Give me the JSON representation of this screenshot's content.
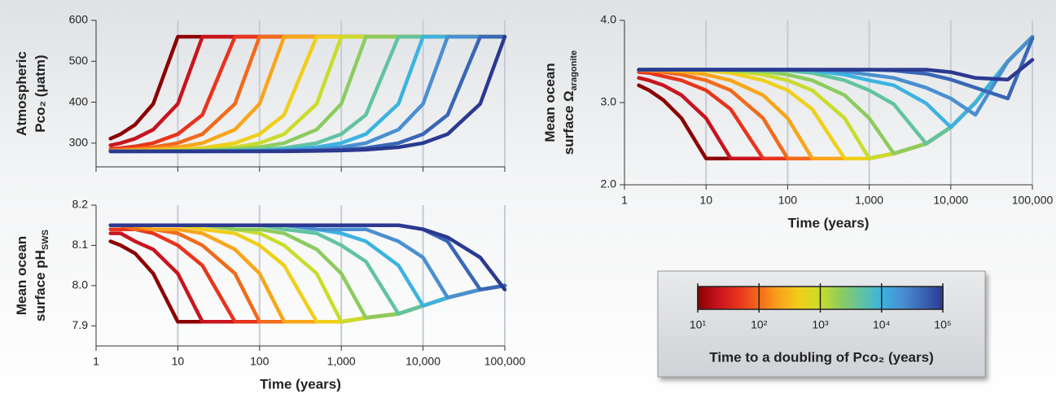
{
  "chart_data": [
    {
      "type": "line",
      "xscale": "log",
      "grid": "x",
      "xtick_labels": false,
      "ylabel": [
        "Atmospheric",
        "Pco₂ (μatm)"
      ],
      "xlim": [
        1,
        100000
      ],
      "xticks": [
        1,
        10,
        100,
        1000,
        10000,
        100000
      ],
      "ylim": [
        242,
        600
      ],
      "yticks": [
        300,
        400,
        500,
        600
      ],
      "x": [
        1.5,
        2,
        3,
        5,
        10,
        20,
        50,
        100,
        200,
        500,
        1000,
        2000,
        5000,
        10000,
        20000,
        50000,
        100000
      ],
      "series": [
        {
          "color": "#8b0000",
          "values": [
            311,
            322,
            345,
            396,
            560,
            560,
            560,
            560,
            560,
            560,
            560,
            560,
            560,
            560,
            560,
            560,
            560
          ]
        },
        {
          "color": "#c8141e",
          "values": [
            295,
            300,
            311,
            333,
            396,
            560,
            560,
            560,
            560,
            560,
            560,
            560,
            560,
            560,
            560,
            560,
            560
          ]
        },
        {
          "color": "#e8341c",
          "values": [
            286,
            288,
            292,
            300,
            322,
            369,
            560,
            560,
            560,
            560,
            560,
            560,
            560,
            560,
            560,
            560,
            560
          ]
        },
        {
          "color": "#f26a1b",
          "values": [
            283,
            284,
            286,
            290,
            300,
            322,
            396,
            560,
            560,
            560,
            560,
            560,
            560,
            560,
            560,
            560,
            560
          ]
        },
        {
          "color": "#f9a51a",
          "values": [
            281,
            282,
            283,
            285,
            290,
            300,
            333,
            396,
            560,
            560,
            560,
            560,
            560,
            560,
            560,
            560,
            560
          ]
        },
        {
          "color": "#f0cf1a",
          "values": [
            280,
            281,
            281,
            282,
            284,
            288,
            300,
            322,
            369,
            560,
            560,
            560,
            560,
            560,
            560,
            560,
            560
          ]
        },
        {
          "color": "#c9dc2b",
          "values": [
            280,
            280,
            281,
            281,
            282,
            284,
            290,
            300,
            322,
            396,
            560,
            560,
            560,
            560,
            560,
            560,
            560
          ]
        },
        {
          "color": "#8ccc5e",
          "values": [
            280,
            280,
            280,
            280,
            281,
            282,
            285,
            290,
            300,
            333,
            396,
            560,
            560,
            560,
            560,
            560,
            560
          ]
        },
        {
          "color": "#62c3a0",
          "values": [
            280,
            280,
            280,
            280,
            280,
            281,
            282,
            284,
            288,
            300,
            322,
            369,
            560,
            560,
            560,
            560,
            560
          ]
        },
        {
          "color": "#3bb3e0",
          "values": [
            280,
            280,
            280,
            280,
            280,
            280,
            281,
            282,
            284,
            290,
            300,
            322,
            396,
            560,
            560,
            560,
            560
          ]
        },
        {
          "color": "#4a8fd0",
          "values": [
            280,
            280,
            280,
            280,
            280,
            280,
            280,
            281,
            282,
            285,
            290,
            300,
            333,
            396,
            560,
            560,
            560
          ]
        },
        {
          "color": "#3a66b5",
          "values": [
            280,
            280,
            280,
            280,
            280,
            280,
            280,
            280,
            281,
            282,
            284,
            288,
            300,
            322,
            369,
            560,
            560
          ]
        },
        {
          "color": "#2b3990",
          "values": [
            280,
            280,
            280,
            280,
            280,
            280,
            280,
            280,
            280,
            281,
            282,
            284,
            290,
            300,
            322,
            396,
            560
          ]
        }
      ]
    },
    {
      "type": "line",
      "xscale": "log",
      "grid": "x",
      "xtick_labels": true,
      "ylabel": [
        "Mean ocean",
        "surface pH"
      ],
      "ylabel_subscript": "SWS",
      "xlabel": "Time (years)",
      "xlim": [
        1,
        100000
      ],
      "xticks": [
        1,
        10,
        100,
        {
          "value": 1000,
          "label": "1,000"
        },
        {
          "value": 10000,
          "label": "10,000"
        },
        {
          "value": 100000,
          "label": "100,000"
        }
      ],
      "ylim": [
        7.85,
        8.2
      ],
      "yticks": [
        8.2,
        8.1,
        {
          "value": 8,
          "label": "8.0"
        },
        7.9
      ],
      "x": [
        1.5,
        2,
        3,
        5,
        10,
        20,
        50,
        100,
        200,
        500,
        1000,
        2000,
        5000,
        10000,
        20000,
        50000,
        100000
      ],
      "series": [
        {
          "color": "#8b0000",
          "values": [
            8.11,
            8.1,
            8.08,
            8.03,
            7.91,
            7.91,
            7.91,
            7.91,
            7.91,
            7.91,
            7.91,
            7.92,
            7.93,
            7.95,
            7.97,
            7.99,
            8.0
          ]
        },
        {
          "color": "#c8141e",
          "values": [
            8.13,
            8.13,
            8.11,
            8.09,
            8.03,
            7.91,
            7.91,
            7.91,
            7.91,
            7.91,
            7.91,
            7.92,
            7.93,
            7.95,
            7.97,
            7.99,
            8.0
          ]
        },
        {
          "color": "#e8341c",
          "values": [
            8.14,
            8.14,
            8.14,
            8.13,
            8.1,
            8.05,
            7.91,
            7.91,
            7.91,
            7.91,
            7.91,
            7.92,
            7.93,
            7.95,
            7.97,
            7.99,
            8.0
          ]
        },
        {
          "color": "#f26a1b",
          "values": [
            8.15,
            8.15,
            8.14,
            8.14,
            8.13,
            8.1,
            8.03,
            7.91,
            7.91,
            7.91,
            7.91,
            7.92,
            7.93,
            7.95,
            7.97,
            7.99,
            8.0
          ]
        },
        {
          "color": "#f9a51a",
          "values": [
            8.15,
            8.15,
            8.15,
            8.14,
            8.14,
            8.13,
            8.09,
            8.03,
            7.91,
            7.91,
            7.91,
            7.92,
            7.93,
            7.95,
            7.97,
            7.99,
            8.0
          ]
        },
        {
          "color": "#f0cf1a",
          "values": [
            8.15,
            8.15,
            8.15,
            8.15,
            8.15,
            8.14,
            8.13,
            8.1,
            8.05,
            7.91,
            7.91,
            7.92,
            7.93,
            7.95,
            7.97,
            7.99,
            8.0
          ]
        },
        {
          "color": "#c9dc2b",
          "values": [
            8.15,
            8.15,
            8.15,
            8.15,
            8.15,
            8.15,
            8.14,
            8.13,
            8.1,
            8.03,
            7.91,
            7.92,
            7.93,
            7.95,
            7.97,
            7.99,
            8.0
          ]
        },
        {
          "color": "#8ccc5e",
          "values": [
            8.15,
            8.15,
            8.15,
            8.15,
            8.15,
            8.15,
            8.14,
            8.14,
            8.13,
            8.09,
            8.03,
            7.92,
            7.93,
            7.95,
            7.97,
            7.99,
            8.0
          ]
        },
        {
          "color": "#62c3a0",
          "values": [
            8.15,
            8.15,
            8.15,
            8.15,
            8.15,
            8.15,
            8.15,
            8.15,
            8.14,
            8.13,
            8.1,
            8.06,
            7.93,
            7.95,
            7.97,
            7.99,
            8.0
          ]
        },
        {
          "color": "#3bb3e0",
          "values": [
            8.15,
            8.15,
            8.15,
            8.15,
            8.15,
            8.15,
            8.15,
            8.15,
            8.15,
            8.14,
            8.13,
            8.11,
            8.05,
            7.95,
            7.97,
            7.99,
            8.0
          ]
        },
        {
          "color": "#4a8fd0",
          "values": [
            8.15,
            8.15,
            8.15,
            8.15,
            8.15,
            8.15,
            8.15,
            8.15,
            8.15,
            8.14,
            8.14,
            8.14,
            8.11,
            8.07,
            7.97,
            7.99,
            8.0
          ]
        },
        {
          "color": "#3a66b5",
          "values": [
            8.15,
            8.15,
            8.15,
            8.15,
            8.15,
            8.15,
            8.15,
            8.15,
            8.15,
            8.15,
            8.15,
            8.15,
            8.15,
            8.14,
            8.11,
            7.99,
            8.0
          ]
        },
        {
          "color": "#2b3990",
          "values": [
            8.15,
            8.15,
            8.15,
            8.15,
            8.15,
            8.15,
            8.15,
            8.15,
            8.15,
            8.15,
            8.15,
            8.15,
            8.15,
            8.14,
            8.12,
            8.07,
            7.99
          ]
        }
      ]
    },
    {
      "type": "line",
      "xscale": "log",
      "grid": "x",
      "xtick_labels": true,
      "ylabel": [
        "Mean ocean",
        "surface Ω"
      ],
      "ylabel_subscript": "aragonite",
      "xlabel": "Time (years)",
      "xlim": [
        1,
        100000
      ],
      "xticks": [
        1,
        10,
        100,
        {
          "value": 1000,
          "label": "1,000"
        },
        {
          "value": 10000,
          "label": "10,000"
        },
        {
          "value": 100000,
          "label": "100,000"
        }
      ],
      "ylim": [
        2,
        4
      ],
      "yticks": [
        {
          "value": 4,
          "label": "4.0"
        },
        {
          "value": 3,
          "label": "3.0"
        },
        {
          "value": 2,
          "label": "2.0"
        }
      ],
      "x": [
        1.5,
        2,
        3,
        5,
        10,
        20,
        50,
        100,
        200,
        500,
        1000,
        2000,
        5000,
        10000,
        20000,
        50000,
        100000
      ],
      "series": [
        {
          "color": "#8b0000",
          "values": [
            3.21,
            3.15,
            3.03,
            2.81,
            2.32,
            2.32,
            2.32,
            2.32,
            2.32,
            2.32,
            2.32,
            2.38,
            2.5,
            2.7,
            3.0,
            3.5,
            3.8
          ]
        },
        {
          "color": "#c8141e",
          "values": [
            3.3,
            3.27,
            3.21,
            3.09,
            2.81,
            2.32,
            2.32,
            2.32,
            2.32,
            2.32,
            2.32,
            2.38,
            2.5,
            2.7,
            3.0,
            3.5,
            3.8
          ]
        },
        {
          "color": "#e8341c",
          "values": [
            3.37,
            3.36,
            3.32,
            3.27,
            3.15,
            2.92,
            2.32,
            2.32,
            2.32,
            2.32,
            2.32,
            2.38,
            2.5,
            2.7,
            3.0,
            3.5,
            3.8
          ]
        },
        {
          "color": "#f26a1b",
          "values": [
            3.39,
            3.39,
            3.37,
            3.34,
            3.27,
            3.15,
            2.81,
            2.32,
            2.32,
            2.32,
            2.32,
            2.38,
            2.5,
            2.7,
            3.0,
            3.5,
            3.8
          ]
        },
        {
          "color": "#f9a51a",
          "values": [
            3.4,
            3.39,
            3.39,
            3.38,
            3.34,
            3.27,
            3.09,
            2.81,
            2.32,
            2.32,
            2.32,
            2.38,
            2.5,
            2.7,
            3.0,
            3.5,
            3.8
          ]
        },
        {
          "color": "#f0cf1a",
          "values": [
            3.4,
            3.4,
            3.4,
            3.39,
            3.39,
            3.36,
            3.27,
            3.15,
            2.92,
            2.32,
            2.32,
            2.38,
            2.5,
            2.7,
            3.0,
            3.5,
            3.8
          ]
        },
        {
          "color": "#c9dc2b",
          "values": [
            3.4,
            3.4,
            3.4,
            3.4,
            3.39,
            3.39,
            3.34,
            3.27,
            3.15,
            2.81,
            2.32,
            2.38,
            2.5,
            2.7,
            3.0,
            3.5,
            3.8
          ]
        },
        {
          "color": "#8ccc5e",
          "values": [
            3.4,
            3.4,
            3.4,
            3.4,
            3.4,
            3.39,
            3.38,
            3.34,
            3.27,
            3.09,
            2.81,
            2.38,
            2.5,
            2.7,
            3.0,
            3.5,
            3.8
          ]
        },
        {
          "color": "#62c3a0",
          "values": [
            3.4,
            3.4,
            3.4,
            3.4,
            3.4,
            3.4,
            3.39,
            3.39,
            3.36,
            3.27,
            3.15,
            2.98,
            2.5,
            2.7,
            3.0,
            3.5,
            3.8
          ]
        },
        {
          "color": "#3bb3e0",
          "values": [
            3.4,
            3.4,
            3.4,
            3.4,
            3.4,
            3.4,
            3.4,
            3.4,
            3.39,
            3.34,
            3.27,
            3.21,
            2.99,
            2.7,
            3.0,
            3.5,
            3.8
          ]
        },
        {
          "color": "#4a8fd0",
          "values": [
            3.4,
            3.4,
            3.4,
            3.4,
            3.4,
            3.4,
            3.4,
            3.4,
            3.4,
            3.38,
            3.34,
            3.3,
            3.18,
            3.05,
            2.85,
            3.5,
            3.8
          ]
        },
        {
          "color": "#3a66b5",
          "values": [
            3.4,
            3.4,
            3.4,
            3.4,
            3.4,
            3.4,
            3.4,
            3.4,
            3.4,
            3.4,
            3.4,
            3.39,
            3.35,
            3.28,
            3.18,
            3.05,
            3.78
          ]
        },
        {
          "color": "#2b3990",
          "values": [
            3.4,
            3.4,
            3.4,
            3.4,
            3.4,
            3.4,
            3.4,
            3.4,
            3.4,
            3.4,
            3.4,
            3.4,
            3.4,
            3.37,
            3.3,
            3.28,
            3.52
          ]
        }
      ]
    }
  ],
  "colorbar": {
    "title": "Time to a doubling of Pco₂ (years)",
    "lim": [
      10,
      100000
    ],
    "ticks": [
      {
        "value": 10,
        "label": "10¹"
      },
      {
        "value": 100,
        "label": "10²"
      },
      {
        "value": 1000,
        "label": "10³"
      },
      {
        "value": 10000,
        "label": "10⁴"
      },
      {
        "value": 100000,
        "label": "10⁵"
      }
    ]
  }
}
